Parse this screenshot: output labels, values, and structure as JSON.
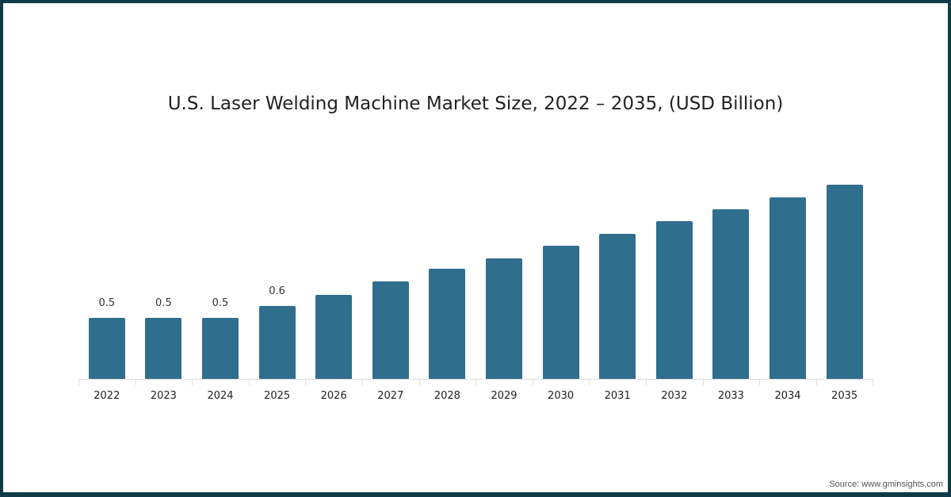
{
  "title": "U.S. Laser Welding Machine Market Size, 2022 – 2035, (USD Billion)",
  "source": "Source: www.gminsights.com",
  "colors": {
    "bar": "#306e8e",
    "border": "#0e3a4a"
  },
  "chart_data": {
    "type": "bar",
    "title": "U.S. Laser Welding Machine Market Size, 2022 – 2035, (USD Billion)",
    "xlabel": "",
    "ylabel": "USD Billion",
    "categories": [
      "2022",
      "2023",
      "2024",
      "2025",
      "2026",
      "2027",
      "2028",
      "2029",
      "2030",
      "2031",
      "2032",
      "2033",
      "2034",
      "2035"
    ],
    "values": [
      0.5,
      0.5,
      0.5,
      0.6,
      0.69,
      0.8,
      0.9,
      0.99,
      1.09,
      1.19,
      1.29,
      1.39,
      1.49,
      1.59
    ],
    "data_labels": [
      "0.5",
      "0.5",
      "0.5",
      "0.6",
      "",
      "",
      "",
      "",
      "",
      "",
      "",
      "",
      "",
      ""
    ],
    "grid": false,
    "legend": null
  }
}
